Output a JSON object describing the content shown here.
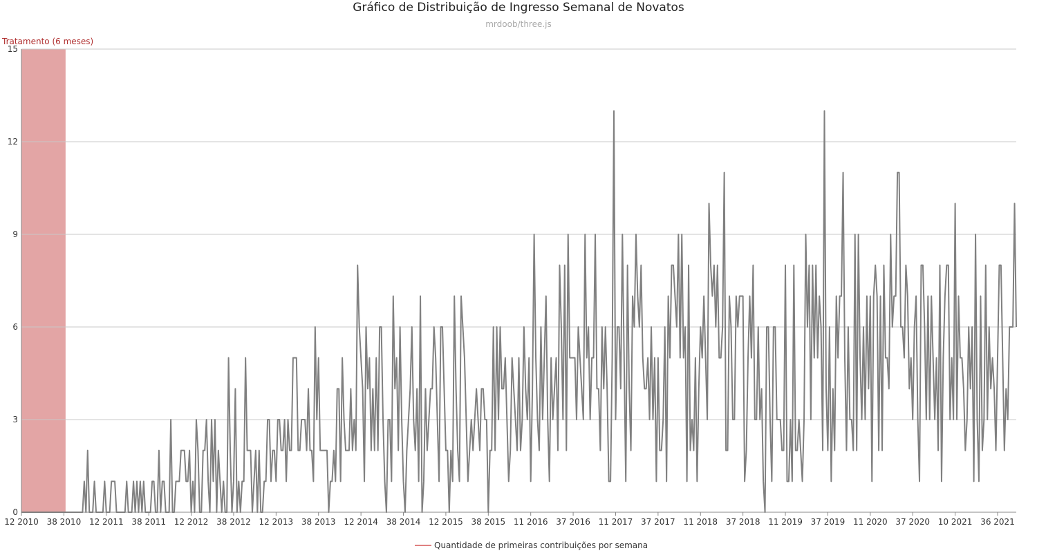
{
  "chart_data": {
    "type": "line",
    "title": "Gráfico de Distribuição de Ingresso Semanal de Novatos",
    "subtitle": "mrdoob/three.js",
    "xlabel": "",
    "ylabel": "",
    "ylim": [
      0,
      15
    ],
    "yticks": [
      0,
      3,
      6,
      9,
      12,
      15
    ],
    "grid": true,
    "legend_position": "bottom-center",
    "x_tick_labels": [
      "12 2010",
      "38 2010",
      "12 2011",
      "38 2011",
      "12 2012",
      "38 2012",
      "12 2013",
      "38 2013",
      "12 2014",
      "38 2014",
      "12 2015",
      "38 2015",
      "11 2016",
      "37 2016",
      "11 2017",
      "37 2017",
      "11 2018",
      "37 2018",
      "11 2019",
      "37 2019",
      "11 2020",
      "37 2020",
      "10 2021",
      "36 2021"
    ],
    "band": {
      "label": "Tratamento (6 meses)",
      "from_week": 0,
      "to_week": 26,
      "color": "#e3a5a5"
    },
    "series": [
      {
        "name": "Quantidade de primeiras contribuições por semana",
        "color": "#808080",
        "legend_color": "#e08080",
        "x_unit": "week index from week 12 of 2010",
        "values": [
          0,
          0,
          0,
          0,
          0,
          0,
          0,
          0,
          0,
          0,
          0,
          0,
          0,
          0,
          0,
          0,
          0,
          0,
          0,
          0,
          0,
          0,
          0,
          0,
          0,
          0,
          0,
          0,
          0,
          0,
          0,
          0,
          0,
          0,
          0,
          0,
          0,
          1,
          0,
          2,
          0,
          0,
          0,
          1,
          0,
          0,
          0,
          0,
          0,
          1,
          0,
          0,
          0,
          1,
          1,
          1,
          0,
          0,
          0,
          0,
          0,
          0,
          1,
          0,
          0,
          0,
          1,
          0,
          1,
          0,
          1,
          0,
          1,
          0,
          0,
          0,
          0,
          1,
          1,
          0,
          0,
          2,
          0,
          1,
          1,
          0,
          0,
          0,
          3,
          0,
          0,
          1,
          1,
          1,
          2,
          2,
          2,
          1,
          1,
          2,
          0,
          1,
          0,
          3,
          2,
          0,
          0,
          2,
          2,
          3,
          1,
          0,
          3,
          1,
          3,
          0,
          2,
          1,
          0,
          1,
          0,
          0,
          5,
          2,
          0,
          1,
          4,
          0,
          1,
          0,
          1,
          1,
          5,
          2,
          2,
          2,
          0,
          1,
          2,
          0,
          2,
          0,
          0,
          1,
          1,
          3,
          3,
          1,
          2,
          2,
          1,
          3,
          3,
          2,
          2,
          3,
          1,
          3,
          2,
          2,
          5,
          5,
          5,
          2,
          2,
          3,
          3,
          3,
          2,
          4,
          2,
          2,
          1,
          6,
          3,
          5,
          2,
          2,
          2,
          2,
          2,
          0,
          1,
          1,
          2,
          1,
          4,
          4,
          1,
          5,
          3,
          2,
          2,
          2,
          4,
          2,
          3,
          2,
          8,
          6,
          5,
          4,
          1,
          6,
          4,
          5,
          2,
          4,
          2,
          5,
          2,
          6,
          6,
          3,
          1,
          0,
          3,
          3,
          1,
          7,
          4,
          5,
          2,
          6,
          3,
          1,
          0,
          2,
          3,
          4,
          6,
          3,
          2,
          4,
          1,
          7,
          0,
          1,
          4,
          2,
          3,
          4,
          4,
          6,
          5,
          3,
          1,
          6,
          6,
          4,
          2,
          2,
          0,
          2,
          1,
          7,
          4,
          2,
          1,
          7,
          6,
          5,
          3,
          1,
          2,
          3,
          2,
          3,
          4,
          3,
          2,
          4,
          4,
          3,
          3,
          0,
          2,
          2,
          6,
          2,
          6,
          3,
          6,
          4,
          4,
          5,
          3,
          1,
          2,
          5,
          4,
          3,
          2,
          5,
          2,
          3,
          6,
          4,
          3,
          5,
          1,
          4,
          9,
          5,
          3,
          2,
          6,
          3,
          5,
          7,
          3,
          1,
          5,
          3,
          4,
          5,
          2,
          8,
          6,
          3,
          8,
          2,
          9,
          5,
          5,
          5,
          5,
          3,
          6,
          5,
          4,
          3,
          9,
          5,
          6,
          3,
          5,
          5,
          9,
          4,
          4,
          2,
          6,
          4,
          6,
          4,
          1,
          1,
          5,
          13,
          3,
          6,
          6,
          4,
          9,
          5,
          1,
          8,
          4,
          2,
          7,
          6,
          9,
          7,
          6,
          8,
          5,
          4,
          4,
          5,
          3,
          6,
          3,
          5,
          1,
          5,
          2,
          2,
          3,
          6,
          1,
          7,
          5,
          8,
          8,
          7,
          6,
          9,
          5,
          9,
          5,
          6,
          1,
          8,
          2,
          3,
          2,
          5,
          1,
          4,
          6,
          5,
          7,
          5,
          3,
          10,
          8,
          7,
          8,
          6,
          8,
          5,
          5,
          6,
          11,
          2,
          2,
          7,
          6,
          3,
          3,
          7,
          6,
          7,
          7,
          7,
          1,
          2,
          5,
          7,
          5,
          8,
          3,
          3,
          6,
          3,
          4,
          1,
          0,
          6,
          6,
          3,
          1,
          6,
          6,
          3,
          3,
          3,
          2,
          2,
          8,
          1,
          1,
          3,
          1,
          8,
          2,
          2,
          3,
          2,
          1,
          3,
          9,
          6,
          8,
          3,
          8,
          5,
          8,
          5,
          7,
          6,
          2,
          13,
          4,
          2,
          6,
          1,
          4,
          2,
          7,
          5,
          7,
          7,
          11,
          5,
          2,
          6,
          3,
          3,
          2,
          9,
          2,
          9,
          5,
          3,
          6,
          3,
          7,
          4,
          7,
          1,
          7,
          8,
          7,
          2,
          7,
          2,
          8,
          5,
          5,
          4,
          9,
          6,
          7,
          7,
          11,
          11,
          6,
          6,
          5,
          8,
          7,
          4,
          5,
          3,
          6,
          7,
          3,
          1,
          8,
          8,
          6,
          3,
          7,
          3,
          7,
          5,
          3,
          5,
          2,
          8,
          1,
          5,
          7,
          8,
          8,
          3,
          5,
          3,
          10,
          3,
          7,
          5,
          5,
          4,
          2,
          3,
          6,
          4,
          6,
          1,
          9,
          3,
          1,
          7,
          2,
          3,
          8,
          3,
          6,
          4,
          5,
          4,
          2,
          5,
          8,
          8,
          5,
          2,
          4,
          3,
          6,
          6,
          6,
          10,
          6
        ]
      }
    ]
  }
}
